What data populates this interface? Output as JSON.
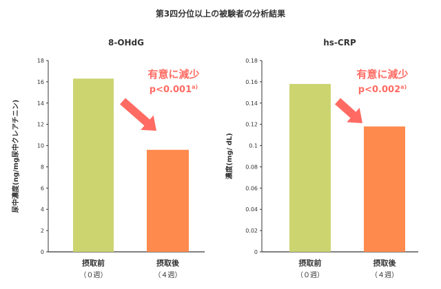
{
  "page": {
    "title": "第3四分位以上の被験者の分析結果"
  },
  "colors": {
    "before": "#ccd470",
    "after": "#ff8a4e",
    "accent": "#ff6b63",
    "axis": "#333333"
  },
  "chart_data": [
    {
      "type": "bar",
      "title": "8-OHdG",
      "ylabel": "尿中濃度(ng/mg尿中クレアチニン)",
      "xlabel": "",
      "categories": [
        "摂取前",
        "摂取後"
      ],
      "category_sub": [
        "（０週）",
        "（４週）"
      ],
      "values": [
        16.3,
        9.6
      ],
      "ylim": [
        0,
        18
      ],
      "yticks": [
        0,
        2,
        4,
        6,
        8,
        10,
        12,
        14,
        16,
        18
      ],
      "ytick_labels": [
        "0",
        "2",
        "4",
        "6",
        "8",
        "10",
        "12",
        "14",
        "16",
        "18"
      ],
      "annotation": {
        "line1": "有意に減少",
        "line2": "p<0.001",
        "sup": "a)"
      },
      "grid": false
    },
    {
      "type": "bar",
      "title": "hs-CRP",
      "ylabel": "濃度(mg/ dL)",
      "xlabel": "",
      "categories": [
        "摂取前",
        "摂取後"
      ],
      "category_sub": [
        "（０週）",
        "（４週）"
      ],
      "values": [
        0.158,
        0.118
      ],
      "ylim": [
        0,
        0.18
      ],
      "yticks": [
        0,
        0.02,
        0.04,
        0.06,
        0.08,
        0.1,
        0.12,
        0.14,
        0.16,
        0.18
      ],
      "ytick_labels": [
        "0",
        "0.02",
        "0.04",
        "0.06",
        "0.08",
        "0.1",
        "0.12",
        "0.14",
        "0.16",
        "0.18"
      ],
      "annotation": {
        "line1": "有意に減少",
        "line2": "p<0.002",
        "sup": "a)"
      },
      "grid": false
    }
  ]
}
